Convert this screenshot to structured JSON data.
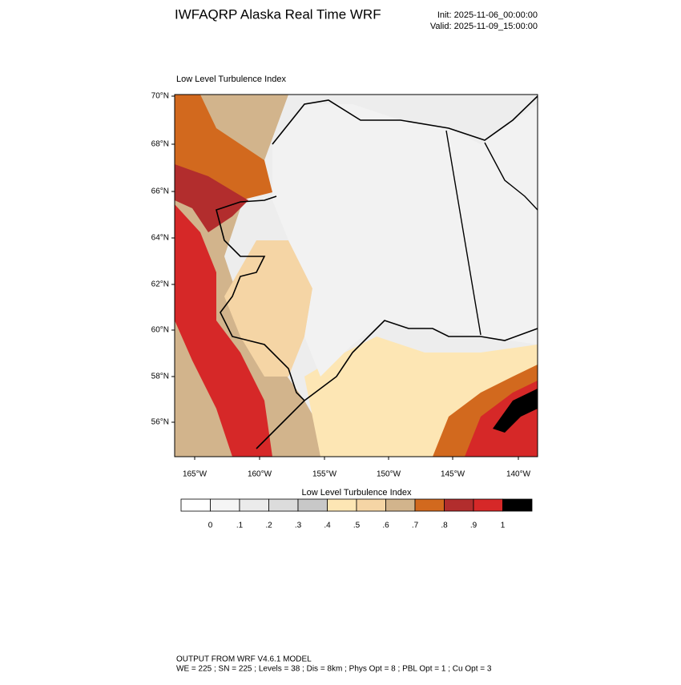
{
  "header": {
    "title": "IWFAQRP Alaska Real Time WRF",
    "init": "Init: 2025-11-06_00:00:00",
    "valid": "Valid: 2025-11-09_15:00:00"
  },
  "map": {
    "title": "Low Level Turbulence Index",
    "lat_labels": [
      "70°N",
      "68°N",
      "66°N",
      "64°N",
      "62°N",
      "60°N",
      "58°N",
      "56°N"
    ],
    "lon_labels": [
      "165°W",
      "160°W",
      "155°W",
      "150°W",
      "145°W",
      "140°W"
    ]
  },
  "colorbar": {
    "title": "Low Level Turbulence Index",
    "labels": [
      "0",
      ".1",
      ".2",
      ".3",
      ".4",
      ".5",
      ".6",
      ".7",
      ".8",
      ".9",
      "1"
    ],
    "colors": [
      "#ffffff",
      "#f5f5f5",
      "#ebebeb",
      "#dcdcdc",
      "#c8c8c8",
      "#fde6b4",
      "#f5d5a5",
      "#d2b48c",
      "#d2691e",
      "#b22d2d",
      "#d62828",
      "#000000"
    ]
  },
  "footer": {
    "line1": "OUTPUT FROM WRF V4.6.1 MODEL",
    "line2": "WE = 225 ; SN = 225 ; Levels = 38 ; Dis = 8km ; Phys Opt = 8 ; PBL Opt = 1 ; Cu Opt = 3"
  }
}
